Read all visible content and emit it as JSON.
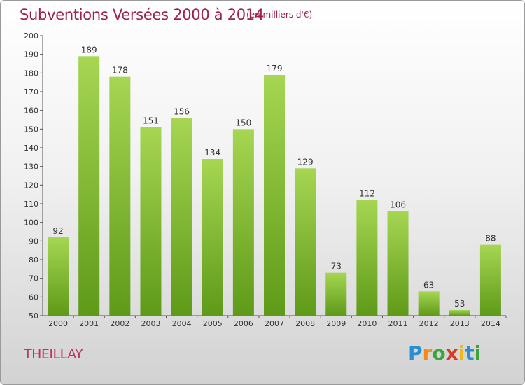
{
  "header": {
    "title": "Subventions Versées 2000 à 2014",
    "subtitle": "(en milliers d'€)"
  },
  "place": "THEILLAY",
  "logo": {
    "letters": [
      "P",
      "r",
      "o",
      "x",
      "i",
      "t",
      "i"
    ],
    "colors": [
      "#2a8fd0",
      "#f08a18",
      "#3aa63a",
      "#d83a2a",
      "#f0b818",
      "#2a8fd0",
      "#3aa63a"
    ]
  },
  "chart_data": {
    "type": "bar",
    "title": "Subventions Versées 2000 à 2014",
    "subtitle": "(en milliers d'€)",
    "categories": [
      "2000",
      "2001",
      "2002",
      "2003",
      "2004",
      "2005",
      "2006",
      "2007",
      "2008",
      "2009",
      "2010",
      "2011",
      "2012",
      "2013",
      "2014"
    ],
    "values": [
      92,
      189,
      178,
      151,
      156,
      134,
      150,
      179,
      129,
      73,
      112,
      106,
      63,
      53,
      88
    ],
    "ylim": [
      50,
      200
    ],
    "yticks": [
      50,
      60,
      70,
      80,
      90,
      100,
      110,
      120,
      130,
      140,
      150,
      160,
      170,
      180,
      190,
      200
    ],
    "grid": false,
    "bar_color": "#7cbf2a",
    "bar_color_light": "#a6d652",
    "bar_color_dark": "#5e9a18"
  }
}
